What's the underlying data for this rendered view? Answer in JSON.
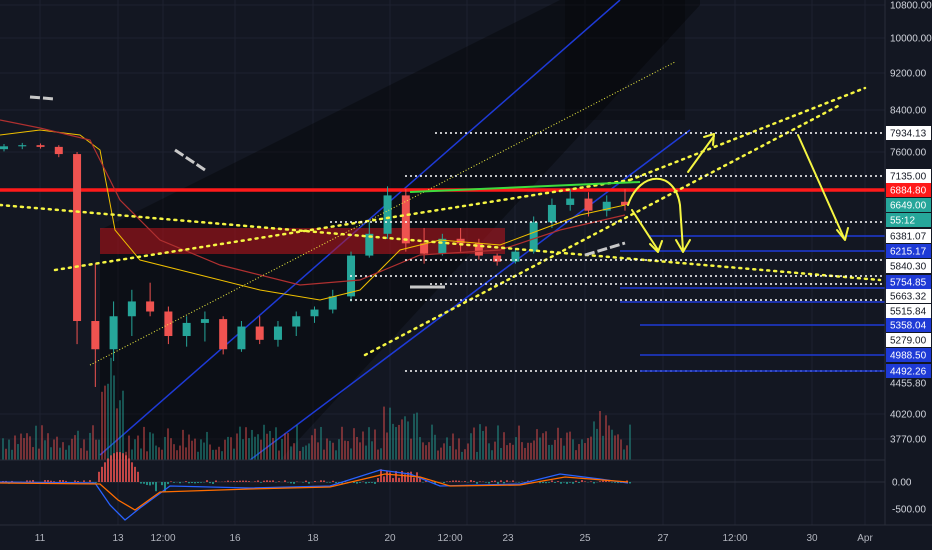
{
  "chart_data": {
    "type": "candlestick",
    "grid": true,
    "x_ticks": [
      "11",
      "13",
      "12:00",
      "16",
      "18",
      "20",
      "12:00",
      "23",
      "25",
      "27",
      "12:00",
      "30",
      "Apr"
    ],
    "y_ticks": [
      "10800.00",
      "10000.00",
      "9200.00",
      "8400.00",
      "7600.00",
      "4455.80",
      "4020.00",
      "3770.00"
    ],
    "price_labels": [
      {
        "text": "7934.13",
        "value": 7934.13,
        "color": "#ffffff",
        "text_color": "#131722"
      },
      {
        "text": "7135.00",
        "value": 7135.0,
        "color": "#ffffff",
        "text_color": "#131722"
      },
      {
        "text": "6884.80",
        "value": 6884.8,
        "color": "#ff1a1a",
        "text_color": "#ffffff"
      },
      {
        "text": "6649.00",
        "value": 6649.0,
        "color": "#26a69a",
        "text_color": "#ffffff"
      },
      {
        "text": "55:12",
        "value": 6500.0,
        "color": "#26a69a",
        "text_color": "#ffffff"
      },
      {
        "text": "6381.07",
        "value": 6381.07,
        "color": "#ffffff",
        "text_color": "#131722"
      },
      {
        "text": "6215.17",
        "value": 6215.17,
        "color": "#1e3ad6",
        "text_color": "#ffffff"
      },
      {
        "text": "5840.30",
        "value": 5840.3,
        "color": "#ffffff",
        "text_color": "#131722"
      },
      {
        "text": "5754.85",
        "value": 5754.85,
        "color": "#1e3ad6",
        "text_color": "#ffffff"
      },
      {
        "text": "5663.32",
        "value": 5663.32,
        "color": "#ffffff",
        "text_color": "#131722"
      },
      {
        "text": "5515.84",
        "value": 5515.84,
        "color": "#ffffff",
        "text_color": "#131722"
      },
      {
        "text": "5358.04",
        "value": 5358.04,
        "color": "#1e3ad6",
        "text_color": "#ffffff"
      },
      {
        "text": "5279.00",
        "value": 5279.0,
        "color": "#ffffff",
        "text_color": "#131722"
      },
      {
        "text": "4988.50",
        "value": 4988.5,
        "color": "#1e3ad6",
        "text_color": "#ffffff"
      },
      {
        "text": "4492.26",
        "value": 4492.26,
        "color": "#1e3ad6",
        "text_color": "#ffffff"
      }
    ],
    "macd_ticks": [
      "0.00",
      "-500.00"
    ],
    "colors": {
      "background": "#131722",
      "up": "#26a69a",
      "down": "#ef5350",
      "resistance": "#ff1a1a",
      "trendline": "#f5f542",
      "channel": "#1e3ad6",
      "support": "#ffffff"
    },
    "series": [
      {
        "values": [
          [
            7650,
            7740,
            7610,
            7700
          ],
          [
            7700,
            7760,
            7650,
            7720
          ],
          [
            7720,
            7750,
            7660,
            7690
          ],
          [
            7690,
            7720,
            7500,
            7560
          ],
          [
            7560,
            7600,
            5200,
            5400
          ],
          [
            5400,
            5900,
            4400,
            5100
          ],
          [
            5100,
            5600,
            4800,
            5450
          ],
          [
            5450,
            5700,
            5300,
            5600
          ],
          [
            5600,
            5750,
            5450,
            5500
          ],
          [
            5500,
            5550,
            5200,
            5300
          ],
          [
            5300,
            5450,
            5150,
            5380
          ],
          [
            5380,
            5500,
            5250,
            5420
          ],
          [
            5420,
            5450,
            5000,
            5100
          ],
          [
            5100,
            5400,
            5050,
            5350
          ],
          [
            5350,
            5450,
            5200,
            5280
          ],
          [
            5280,
            5400,
            5150,
            5350
          ],
          [
            5350,
            5500,
            5300,
            5450
          ],
          [
            5450,
            5550,
            5380,
            5520
          ],
          [
            5520,
            5700,
            5480,
            5650
          ],
          [
            5650,
            6200,
            5600,
            6100
          ],
          [
            6100,
            6500,
            6050,
            6400
          ],
          [
            6400,
            6950,
            6350,
            6800
          ],
          [
            6800,
            6900,
            6200,
            6300
          ],
          [
            6300,
            6450,
            5900,
            6150
          ],
          [
            6150,
            6400,
            6100,
            6350
          ],
          [
            6350,
            6450,
            6200,
            6300
          ],
          [
            6300,
            6350,
            6000,
            6100
          ],
          [
            6100,
            6150,
            5850,
            5950
          ],
          [
            5950,
            6250,
            5900,
            6200
          ],
          [
            6200,
            6550,
            6150,
            6500
          ],
          [
            6500,
            6750,
            6450,
            6650
          ],
          [
            6650,
            6900,
            6600,
            6750
          ],
          [
            6750,
            6850,
            6550,
            6600
          ],
          [
            6600,
            6800,
            6550,
            6700
          ],
          [
            6700,
            6900,
            6600,
            6649
          ]
        ]
      }
    ]
  }
}
